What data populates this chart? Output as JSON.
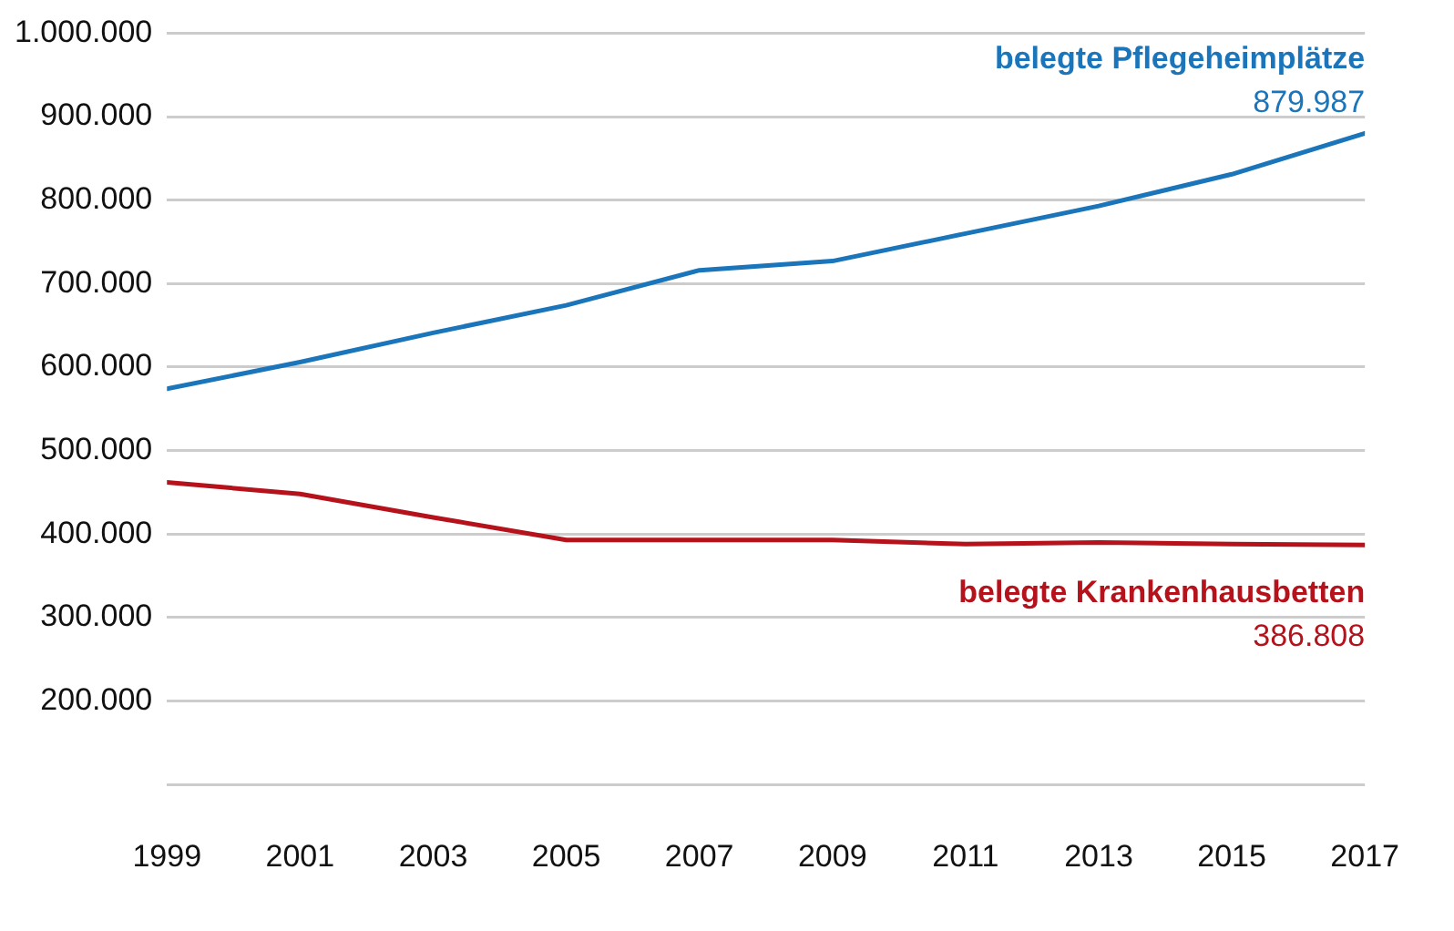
{
  "chart_data": {
    "type": "line",
    "x": [
      1999,
      2001,
      2003,
      2005,
      2007,
      2009,
      2011,
      2013,
      2015,
      2017
    ],
    "series": [
      {
        "name": "belegte Pflegeheimplätze",
        "color": "#1a75bb",
        "values": [
          574000,
          606000,
          641000,
          674000,
          716000,
          727000,
          760000,
          793000,
          831000,
          879987
        ],
        "value_labels": [
          null,
          null,
          null,
          null,
          null,
          null,
          null,
          null,
          null,
          "879.987"
        ]
      },
      {
        "name": "belegte Krankenhausbetten",
        "color": "#b5121b",
        "values": [
          462000,
          448000,
          420000,
          393000,
          393000,
          393000,
          388000,
          390000,
          388000,
          386808
        ],
        "value_labels": [
          null,
          null,
          null,
          null,
          null,
          null,
          null,
          null,
          null,
          "386.808"
        ]
      }
    ],
    "xlim": [
      1999,
      2017
    ],
    "xticks": [
      1999,
      2001,
      2003,
      2005,
      2007,
      2009,
      2011,
      2013,
      2015,
      2017
    ],
    "ylim": [
      100000,
      1000000
    ],
    "yticks": [
      {
        "value": 100000,
        "label": null
      },
      {
        "value": 200000,
        "label": "200.000"
      },
      {
        "value": 300000,
        "label": "300.000"
      },
      {
        "value": 400000,
        "label": "400.000"
      },
      {
        "value": 500000,
        "label": "500.000"
      },
      {
        "value": 600000,
        "label": "600.000"
      },
      {
        "value": 700000,
        "label": "700.000"
      },
      {
        "value": 800000,
        "label": "800.000"
      },
      {
        "value": 900000,
        "label": "900.000"
      },
      {
        "value": 1000000,
        "label": "1.000.000"
      }
    ],
    "grid": "y",
    "legend": false,
    "marker": "none",
    "line_style": "solid"
  }
}
